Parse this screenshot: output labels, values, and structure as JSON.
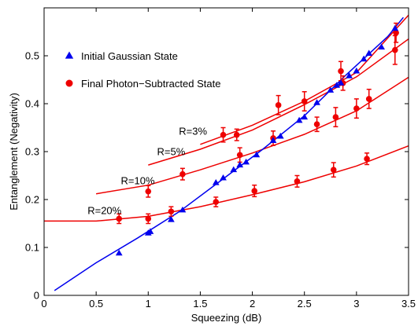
{
  "chart_data": {
    "type": "scatter",
    "title": "",
    "xlabel": "Squeezing (dB)",
    "ylabel": "Entanglement (Negativity)",
    "xlim": [
      0,
      3.5
    ],
    "ylim": [
      0,
      0.6
    ],
    "xticks": [
      0,
      0.5,
      1,
      1.5,
      2,
      2.5,
      3,
      3.5
    ],
    "yticks": [
      0,
      0.1,
      0.2,
      0.3,
      0.4,
      0.5
    ],
    "xtick_labels": [
      "0",
      "0.5",
      "1",
      "1.5",
      "2",
      "2.5",
      "3",
      "3.5"
    ],
    "ytick_labels": [
      "0",
      "0.1",
      "0.2",
      "0.3",
      "0.4",
      "0.5"
    ],
    "grid": false,
    "legend_position": "top-left",
    "colors": {
      "gaussian": "#0000ee",
      "subtracted": "#ee0000"
    },
    "legend": [
      {
        "label": "Initial Gaussian State",
        "marker": "triangle",
        "color": "#0000ee"
      },
      {
        "label": "Final Photon−Subtracted State",
        "marker": "circle",
        "color": "#ee0000"
      }
    ],
    "gaussian_points": {
      "x": [
        0.72,
        1.0,
        1.02,
        1.22,
        1.33,
        1.65,
        1.72,
        1.82,
        1.88,
        1.94,
        2.04,
        2.2,
        2.27,
        2.45,
        2.5,
        2.62,
        2.75,
        2.81,
        2.85,
        2.93,
        3.0,
        3.07,
        3.12,
        3.24,
        3.37
      ],
      "y": [
        0.088,
        0.13,
        0.133,
        0.158,
        0.178,
        0.235,
        0.245,
        0.262,
        0.272,
        0.278,
        0.293,
        0.323,
        0.332,
        0.365,
        0.372,
        0.402,
        0.428,
        0.438,
        0.443,
        0.458,
        0.468,
        0.493,
        0.505,
        0.518,
        0.557
      ]
    },
    "gaussian_curve": {
      "x": [
        0.1,
        0.5,
        0.9,
        1.3,
        1.7,
        2.1,
        2.5,
        2.9,
        3.3,
        3.45
      ],
      "y": [
        0.01,
        0.068,
        0.12,
        0.175,
        0.24,
        0.305,
        0.375,
        0.46,
        0.54,
        0.58
      ]
    },
    "subtracted_points": [
      {
        "x": 0.72,
        "y": 0.16,
        "err": 0.01
      },
      {
        "x": 1.0,
        "y": 0.16,
        "err": 0.01
      },
      {
        "x": 1.0,
        "y": 0.217,
        "err": 0.012
      },
      {
        "x": 1.22,
        "y": 0.175,
        "err": 0.01
      },
      {
        "x": 1.33,
        "y": 0.253,
        "err": 0.012
      },
      {
        "x": 1.65,
        "y": 0.195,
        "err": 0.01
      },
      {
        "x": 1.72,
        "y": 0.335,
        "err": 0.015
      },
      {
        "x": 1.85,
        "y": 0.335,
        "err": 0.012
      },
      {
        "x": 1.88,
        "y": 0.293,
        "err": 0.015
      },
      {
        "x": 2.02,
        "y": 0.218,
        "err": 0.012
      },
      {
        "x": 2.2,
        "y": 0.328,
        "err": 0.015
      },
      {
        "x": 2.25,
        "y": 0.397,
        "err": 0.02
      },
      {
        "x": 2.43,
        "y": 0.238,
        "err": 0.012
      },
      {
        "x": 2.5,
        "y": 0.405,
        "err": 0.02
      },
      {
        "x": 2.62,
        "y": 0.357,
        "err": 0.015
      },
      {
        "x": 2.78,
        "y": 0.262,
        "err": 0.015
      },
      {
        "x": 2.8,
        "y": 0.372,
        "err": 0.02
      },
      {
        "x": 2.85,
        "y": 0.468,
        "err": 0.02
      },
      {
        "x": 2.87,
        "y": 0.443,
        "err": 0.015
      },
      {
        "x": 3.0,
        "y": 0.39,
        "err": 0.02
      },
      {
        "x": 3.1,
        "y": 0.285,
        "err": 0.012
      },
      {
        "x": 3.12,
        "y": 0.41,
        "err": 0.02
      },
      {
        "x": 3.37,
        "y": 0.512,
        "err": 0.03
      },
      {
        "x": 3.38,
        "y": 0.548,
        "err": 0.02
      }
    ],
    "subtracted_curves": [
      {
        "label": "R=3%",
        "label_x": 1.43,
        "label_y": 0.335,
        "x": [
          1.5,
          2.0,
          2.5,
          3.0,
          3.5
        ],
        "y": [
          0.315,
          0.355,
          0.405,
          0.465,
          0.585
        ]
      },
      {
        "label": "R=5%",
        "label_x": 1.22,
        "label_y": 0.293,
        "x": [
          1.0,
          1.5,
          2.0,
          2.5,
          3.0,
          3.5
        ],
        "y": [
          0.272,
          0.305,
          0.345,
          0.398,
          0.456,
          0.535
        ]
      },
      {
        "label": "R=10%",
        "label_x": 0.9,
        "label_y": 0.232,
        "x": [
          0.5,
          1.0,
          1.5,
          2.0,
          2.5,
          3.0,
          3.5
        ],
        "y": [
          0.212,
          0.23,
          0.262,
          0.297,
          0.336,
          0.385,
          0.455
        ]
      },
      {
        "label": "R=20%",
        "label_x": 0.58,
        "label_y": 0.17,
        "x": [
          0.0,
          0.5,
          1.0,
          1.5,
          2.0,
          2.5,
          3.0,
          3.5
        ],
        "y": [
          0.155,
          0.155,
          0.165,
          0.185,
          0.21,
          0.237,
          0.27,
          0.312
        ]
      }
    ]
  }
}
